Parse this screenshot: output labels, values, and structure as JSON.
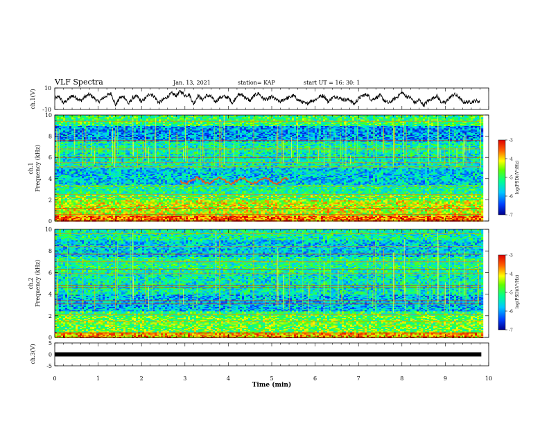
{
  "header": {
    "title": "VLF Spectra",
    "date": "Jan. 13, 2021",
    "station": "station= KAP",
    "start": "start UT =  16: 30: 1"
  },
  "chart_data": [
    {
      "id": "ch1-waveform",
      "type": "line",
      "ylabel": "ch.1(V)",
      "ylim": [
        -10,
        10
      ],
      "yticks": [
        "10",
        "-10"
      ],
      "xlim": [
        0,
        10
      ],
      "x_extent_min": 9.83,
      "series": [
        {
          "x": [
            0.0,
            0.1,
            0.2,
            0.3,
            0.4,
            0.5,
            0.6,
            0.7,
            0.8,
            0.9,
            1.0,
            1.1,
            1.2,
            1.3,
            1.4,
            1.5,
            1.6,
            1.7,
            1.8,
            1.9,
            2.0,
            2.1,
            2.2,
            2.3,
            2.4,
            2.5,
            2.6,
            2.7,
            2.8,
            2.9,
            3.0,
            3.1,
            3.2,
            3.3,
            3.4,
            3.5,
            3.6,
            3.7,
            3.8,
            3.9,
            4.0,
            4.1,
            4.2,
            4.3,
            4.4,
            4.5,
            4.6,
            4.7,
            4.8,
            4.9,
            5.0,
            5.1,
            5.2,
            5.3,
            5.4,
            5.5,
            5.6,
            5.7,
            5.8,
            5.9,
            6.0,
            6.1,
            6.2,
            6.3,
            6.4,
            6.5,
            6.6,
            6.7,
            6.8,
            6.9,
            7.0,
            7.1,
            7.2,
            7.3,
            7.4,
            7.5,
            7.6,
            7.7,
            7.8,
            7.9,
            8.0,
            8.1,
            8.2,
            8.3,
            8.4,
            8.5,
            8.6,
            8.7,
            8.8,
            8.9,
            9.0,
            9.1,
            9.2,
            9.3,
            9.4,
            9.5,
            9.6,
            9.7,
            9.8
          ],
          "y": [
            0,
            2,
            -4,
            -1,
            3,
            1,
            -2,
            2,
            4,
            1,
            -3,
            0,
            3,
            5,
            -6,
            1,
            2,
            -5,
            1,
            2,
            -3,
            1,
            5,
            2,
            -4,
            -1,
            2,
            5,
            3,
            7,
            3,
            4,
            -5,
            3,
            -1,
            3,
            2,
            -3,
            1,
            2,
            1,
            -4,
            3,
            4,
            1,
            -2,
            3,
            5,
            0,
            -1,
            2,
            -1,
            -3,
            0,
            1,
            3,
            -1,
            -3,
            -5,
            -2,
            -1,
            2,
            3,
            -3,
            1,
            2,
            0,
            -1,
            -1,
            -5,
            0,
            3,
            4,
            -1,
            1,
            3,
            -2,
            -4,
            -1,
            2,
            6,
            2,
            1,
            -4,
            -1,
            -6,
            -2,
            0,
            3,
            -3,
            -4,
            1,
            4,
            2,
            -3,
            -3,
            -3,
            -2,
            -3
          ]
        }
      ]
    },
    {
      "id": "ch1-spectrogram",
      "type": "heatmap",
      "ylabel": "ch.1\nFrequency (kHz)",
      "ylim": [
        0,
        10
      ],
      "yticks": [
        "0",
        "2",
        "4",
        "6",
        "8",
        "10"
      ],
      "xlim": [
        0,
        10
      ],
      "colorbar": {
        "label": "log(PSD)(V²/Hz)",
        "range": [
          -7,
          -3
        ],
        "ticks": [
          "-3",
          "-4",
          "-5",
          "-6",
          "-7"
        ]
      },
      "approx_level_by_freq": [
        {
          "f_khz": [
            0,
            0.5
          ],
          "level": -3.5
        },
        {
          "f_khz": [
            0.5,
            2
          ],
          "level": -4.3
        },
        {
          "f_khz": [
            2,
            2.5
          ],
          "level": -4.8
        },
        {
          "f_khz": [
            2.5,
            3.5
          ],
          "level": -5.2
        },
        {
          "f_khz": [
            3.5,
            5
          ],
          "level": -5.7
        },
        {
          "f_khz": [
            5,
            6.5
          ],
          "level": -5.4
        },
        {
          "f_khz": [
            6.5,
            7.5
          ],
          "level": -5.3
        },
        {
          "f_khz": [
            7.5,
            9
          ],
          "level": -6.0
        },
        {
          "f_khz": [
            9,
            10
          ],
          "level": -5.0
        }
      ],
      "emission_band": {
        "t_min": [
          2.9,
          5.4
        ],
        "f_khz": [
          3.5,
          4.1
        ],
        "level": -3.5
      }
    },
    {
      "id": "ch2-spectrogram",
      "type": "heatmap",
      "ylabel": "ch.2\nFrequency (kHz)",
      "ylim": [
        0,
        10
      ],
      "yticks": [
        "0",
        "2",
        "4",
        "6",
        "8",
        "10"
      ],
      "xlim": [
        0,
        10
      ],
      "colorbar": {
        "label": "log(PSD)(V²/Hz)",
        "range": [
          -7,
          -3
        ],
        "ticks": [
          "-3",
          "-4",
          "-5",
          "-6",
          "-7"
        ]
      },
      "approx_level_by_freq": [
        {
          "f_khz": [
            0,
            0.5
          ],
          "level": -3.8
        },
        {
          "f_khz": [
            0.5,
            2
          ],
          "level": -4.7
        },
        {
          "f_khz": [
            2,
            2.5
          ],
          "level": -5.0
        },
        {
          "f_khz": [
            2.5,
            4
          ],
          "level": -5.8
        },
        {
          "f_khz": [
            4,
            6
          ],
          "level": -5.4
        },
        {
          "f_khz": [
            6,
            7.5
          ],
          "level": -5.2
        },
        {
          "f_khz": [
            7.5,
            9
          ],
          "level": -5.7
        },
        {
          "f_khz": [
            9,
            10
          ],
          "level": -5.3
        }
      ]
    },
    {
      "id": "ch3-waveform",
      "type": "line",
      "ylabel": "ch.3(V)",
      "ylim": [
        -5,
        5
      ],
      "yticks": [
        "5",
        "0",
        "-5"
      ],
      "xlim": [
        0,
        10
      ],
      "xticks": [
        "0",
        "1",
        "2",
        "3",
        "4",
        "5",
        "6",
        "7",
        "8",
        "9",
        "10"
      ],
      "xlabel": "Time (min)",
      "series": [
        {
          "x": [
            0,
            9.83
          ],
          "y": [
            0,
            0
          ]
        }
      ]
    }
  ]
}
